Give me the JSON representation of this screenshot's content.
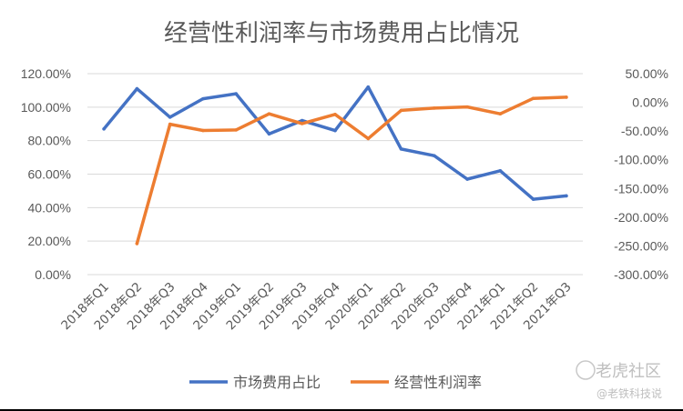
{
  "chart_data": {
    "type": "line",
    "title": "经营性利润率与市场费用占比情况",
    "categories": [
      "2018年Q1",
      "2018年Q2",
      "2018年Q3",
      "2018年Q4",
      "2019年Q1",
      "2019年Q2",
      "2019年Q3",
      "2019年Q4",
      "2020年Q1",
      "2020年Q2",
      "2020年Q3",
      "2020年Q4",
      "2021年Q1",
      "2021年Q2",
      "2021年Q3"
    ],
    "y_left": {
      "ticks": [
        "0.00%",
        "20.00%",
        "40.00%",
        "60.00%",
        "80.00%",
        "100.00%",
        "120.00%"
      ],
      "range": [
        0,
        120
      ]
    },
    "y_right": {
      "ticks": [
        "-300.00%",
        "-250.00%",
        "-200.00%",
        "-150.00%",
        "-100.00%",
        "-50.00%",
        "0.00%",
        "50.00%"
      ],
      "range": [
        -300,
        50
      ]
    },
    "grid": true,
    "legend_position": "bottom",
    "series": [
      {
        "name": "市场费用占比",
        "axis": "left",
        "color": "#4472C4",
        "values": [
          87,
          111,
          94,
          105,
          108,
          84,
          92,
          86,
          112,
          75,
          71,
          57,
          62,
          45,
          47
        ]
      },
      {
        "name": "经营性利润率",
        "axis": "right",
        "color": "#ED7D31",
        "values": [
          null,
          -246,
          -38,
          -49,
          -48,
          -20,
          -37,
          -21,
          -63,
          -14,
          -10,
          -8,
          -20,
          7,
          9
        ]
      }
    ]
  },
  "watermark": {
    "brand": "老虎社区",
    "handle": "@老铁科技说"
  }
}
